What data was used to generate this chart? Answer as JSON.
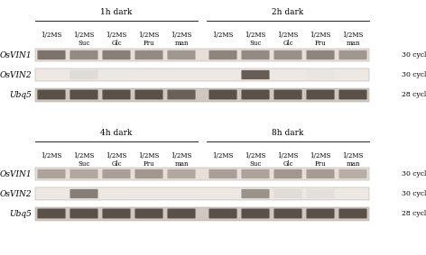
{
  "title_fontsize": 6.5,
  "label_fontsize": 5.0,
  "gene_fontsize": 6.5,
  "cycle_fontsize": 5.5,
  "col_labels": [
    "1/2MS",
    "1/2MS\nSuc",
    "1/2MS\nGlc",
    "1/2MS\nFru",
    "1/2MS\nman"
  ],
  "row_labels": [
    "OsVIN1",
    "OsVIN2",
    "Ubq5"
  ],
  "cycle_labels": [
    "30 cycle",
    "30 cycle",
    "28 cycle"
  ],
  "panel_titles": [
    [
      "1h dark",
      "2h dark"
    ],
    [
      "4h dark",
      "8h dark"
    ]
  ],
  "band_intensities": {
    "1h": {
      "VIN1": [
        0.78,
        0.7,
        0.74,
        0.7,
        0.65
      ],
      "VIN2": [
        0.03,
        0.3,
        0.1,
        0.05,
        0.04
      ],
      "Ubq5": [
        0.88,
        0.88,
        0.88,
        0.88,
        0.83
      ]
    },
    "2h": {
      "VIN1": [
        0.72,
        0.7,
        0.68,
        0.72,
        0.65
      ],
      "VIN2": [
        0.03,
        0.85,
        0.06,
        0.18,
        0.04
      ],
      "Ubq5": [
        0.88,
        0.88,
        0.88,
        0.88,
        0.88
      ]
    },
    "4h": {
      "VIN1": [
        0.6,
        0.58,
        0.62,
        0.65,
        0.58
      ],
      "VIN2": [
        0.03,
        0.75,
        0.08,
        0.05,
        0.04
      ],
      "Ubq5": [
        0.88,
        0.88,
        0.88,
        0.88,
        0.88
      ]
    },
    "8h": {
      "VIN1": [
        0.62,
        0.6,
        0.65,
        0.63,
        0.55
      ],
      "VIN2": [
        0.03,
        0.68,
        0.3,
        0.26,
        0.07
      ],
      "Ubq5": [
        0.88,
        0.88,
        0.88,
        0.88,
        0.88
      ]
    }
  },
  "gel_bg_VIN1": "#e8e0d8",
  "gel_bg_VIN2": "#ede8e3",
  "gel_bg_Ubq5": "#d0c8c0",
  "band_dark": [
    0.22,
    0.18,
    0.14
  ],
  "figure_width": 4.72,
  "figure_height": 2.83
}
